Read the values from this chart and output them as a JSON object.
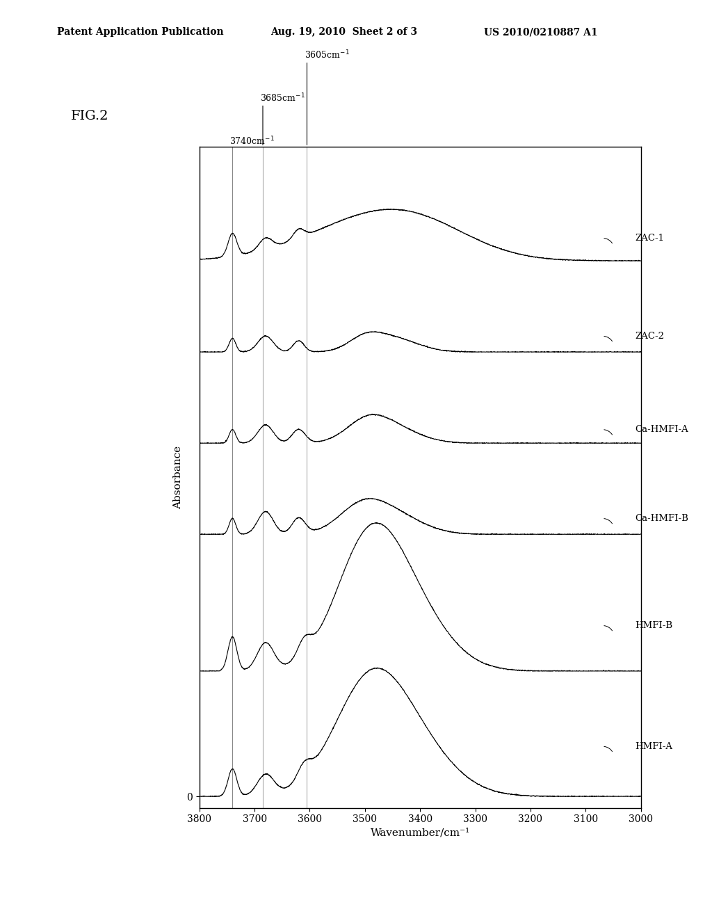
{
  "title": "FIG.2",
  "header_left": "Patent Application Publication",
  "header_center": "Aug. 19, 2010  Sheet 2 of 3",
  "header_right": "US 2010/0210887 A1",
  "xlabel": "Wavenumber/cm⁻¹",
  "ylabel": "Absorbance",
  "x_min": 3000,
  "x_max": 3800,
  "x_ticks": [
    3800,
    3700,
    3600,
    3500,
    3400,
    3300,
    3200,
    3100,
    3000
  ],
  "vlines": [
    3740,
    3685,
    3605
  ],
  "vline_labels": [
    "3740cm⁻¹",
    "3685cm⁻¹",
    "3605cm⁻¹"
  ],
  "series_labels": [
    "ZAC-1",
    "ZAC-2",
    "Ca-HMFI-A",
    "Ca-HMFI-B",
    "HMFI-B",
    "HMFI-A"
  ],
  "background_color": "#ffffff",
  "line_color": "#000000"
}
